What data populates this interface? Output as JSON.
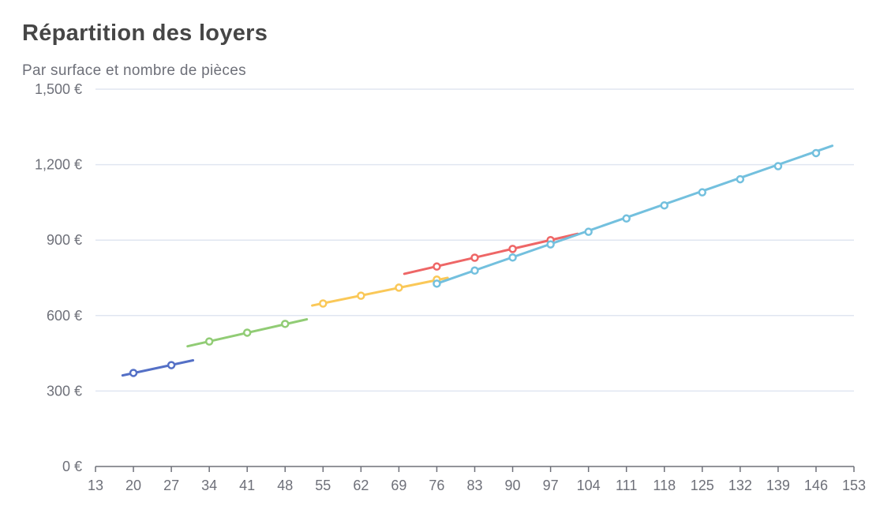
{
  "chart_data": {
    "type": "line",
    "title": "Répartition des loyers",
    "subtitle": "Par surface et nombre de pièces",
    "xlabel": "",
    "ylabel": "",
    "x_ticks": [
      "13",
      "20",
      "27",
      "34",
      "41",
      "48",
      "55",
      "62",
      "69",
      "76",
      "83",
      "90",
      "97",
      "104",
      "111",
      "118",
      "125",
      "132",
      "139",
      "146",
      "153"
    ],
    "y_ticks": [
      "0 €",
      "300 €",
      "600 €",
      "900 €",
      "1,200 €",
      "1,500 €"
    ],
    "xlim": [
      13,
      153
    ],
    "ylim": [
      0,
      1500
    ],
    "grid": true,
    "colors": [
      "#5470c6",
      "#91cc75",
      "#fac858",
      "#ee6666",
      "#73c0de"
    ],
    "series": [
      {
        "color": "#5470c6",
        "line": [
          [
            18,
            362
          ],
          [
            31,
            422
          ]
        ],
        "points": [
          [
            20,
            372
          ],
          [
            27,
            403
          ]
        ]
      },
      {
        "color": "#91cc75",
        "line": [
          [
            30,
            478
          ],
          [
            52,
            585
          ]
        ],
        "points": [
          [
            34,
            497
          ],
          [
            41,
            532
          ],
          [
            48,
            567
          ]
        ]
      },
      {
        "color": "#fac858",
        "line": [
          [
            53,
            640
          ],
          [
            78,
            750
          ]
        ],
        "points": [
          [
            55,
            648
          ],
          [
            62,
            679
          ],
          [
            69,
            711
          ],
          [
            76,
            743
          ]
        ]
      },
      {
        "color": "#ee6666",
        "line": [
          [
            70,
            766
          ],
          [
            102,
            925
          ]
        ],
        "points": [
          [
            76,
            795
          ],
          [
            83,
            830
          ],
          [
            90,
            865
          ],
          [
            97,
            900
          ]
        ]
      },
      {
        "color": "#73c0de",
        "line": [
          [
            76,
            727
          ],
          [
            149,
            1275
          ]
        ],
        "points": [
          [
            76,
            727
          ],
          [
            83,
            779
          ],
          [
            90,
            831
          ],
          [
            97,
            883
          ],
          [
            104,
            933
          ],
          [
            111,
            986
          ],
          [
            118,
            1038
          ],
          [
            125,
            1090
          ],
          [
            132,
            1142
          ],
          [
            139,
            1194
          ],
          [
            146,
            1246
          ]
        ]
      }
    ]
  }
}
